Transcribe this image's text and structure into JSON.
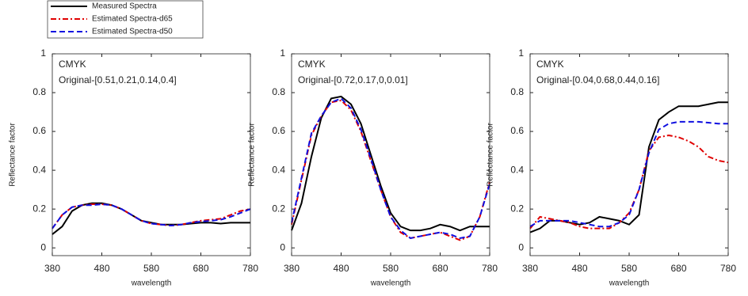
{
  "chart_data": [
    {
      "type": "line",
      "xlim": [
        380,
        780
      ],
      "xticks": [
        380,
        480,
        580,
        680,
        780
      ],
      "ylim": [
        -0.04,
        1
      ],
      "yticks": [
        0,
        0.2,
        0.4,
        0.6,
        0.8,
        1
      ],
      "xlabel": "wavelength",
      "ylabel": "Reflectance factor",
      "annotations": [
        "CMYK",
        "Original-[0.51,0.21,0.14,0.4]"
      ],
      "x": [
        380,
        400,
        420,
        440,
        460,
        480,
        500,
        520,
        540,
        560,
        580,
        600,
        620,
        640,
        660,
        680,
        700,
        720,
        740,
        760,
        780
      ],
      "series": [
        {
          "name": "Measured Spectra",
          "color": "#000000",
          "linestyle": "solid",
          "values": [
            0.07,
            0.11,
            0.19,
            0.22,
            0.23,
            0.23,
            0.22,
            0.2,
            0.17,
            0.14,
            0.13,
            0.12,
            0.12,
            0.12,
            0.125,
            0.13,
            0.13,
            0.125,
            0.13,
            0.13,
            0.13
          ]
        },
        {
          "name": "Estimated Spectra-d65",
          "color": "#e00000",
          "linestyle": "dashdot",
          "values": [
            0.1,
            0.17,
            0.21,
            0.22,
            0.225,
            0.225,
            0.22,
            0.2,
            0.17,
            0.14,
            0.125,
            0.12,
            0.115,
            0.12,
            0.13,
            0.14,
            0.145,
            0.15,
            0.17,
            0.19,
            0.2
          ]
        },
        {
          "name": "Estimated Spectra-d50",
          "color": "#1010e0",
          "linestyle": "dashed",
          "values": [
            0.1,
            0.17,
            0.21,
            0.22,
            0.22,
            0.225,
            0.22,
            0.2,
            0.17,
            0.14,
            0.125,
            0.12,
            0.115,
            0.12,
            0.13,
            0.135,
            0.14,
            0.145,
            0.16,
            0.18,
            0.2
          ]
        }
      ]
    },
    {
      "type": "line",
      "xlim": [
        380,
        780
      ],
      "xticks": [
        380,
        480,
        580,
        680,
        780
      ],
      "ylim": [
        -0.04,
        1
      ],
      "yticks": [
        0,
        0.2,
        0.4,
        0.6,
        0.8,
        1
      ],
      "xlabel": "wavelength",
      "ylabel": "Reflectance factor",
      "annotations": [
        "CMYK",
        "Original-[0.72,0.17,0,0.01]"
      ],
      "x": [
        380,
        400,
        420,
        440,
        460,
        480,
        500,
        520,
        540,
        560,
        580,
        600,
        620,
        640,
        660,
        680,
        700,
        720,
        740,
        760,
        780
      ],
      "series": [
        {
          "color": "#000000",
          "linestyle": "solid",
          "values": [
            0.09,
            0.23,
            0.47,
            0.67,
            0.77,
            0.78,
            0.74,
            0.64,
            0.48,
            0.32,
            0.18,
            0.11,
            0.09,
            0.09,
            0.1,
            0.12,
            0.11,
            0.09,
            0.11,
            0.11,
            0.11
          ]
        },
        {
          "color": "#e00000",
          "linestyle": "dashdot",
          "values": [
            0.12,
            0.35,
            0.58,
            0.68,
            0.75,
            0.76,
            0.71,
            0.6,
            0.45,
            0.3,
            0.16,
            0.08,
            0.05,
            0.06,
            0.07,
            0.08,
            0.06,
            0.04,
            0.06,
            0.16,
            0.34
          ]
        },
        {
          "color": "#1010e0",
          "linestyle": "dashed",
          "values": [
            0.13,
            0.36,
            0.59,
            0.68,
            0.75,
            0.77,
            0.72,
            0.61,
            0.46,
            0.3,
            0.16,
            0.09,
            0.05,
            0.06,
            0.07,
            0.08,
            0.07,
            0.05,
            0.06,
            0.16,
            0.33
          ]
        }
      ]
    },
    {
      "type": "line",
      "xlim": [
        380,
        780
      ],
      "xticks": [
        380,
        480,
        580,
        680,
        780
      ],
      "ylim": [
        -0.04,
        1
      ],
      "yticks": [
        0,
        0.2,
        0.4,
        0.6,
        0.8,
        1
      ],
      "xlabel": "wavelength",
      "ylabel": "Reflectance factor",
      "annotations": [
        "CMYK",
        "Original-[0.04,0.68,0.44,0.16]"
      ],
      "x": [
        380,
        400,
        420,
        440,
        460,
        480,
        500,
        520,
        540,
        560,
        580,
        600,
        620,
        640,
        660,
        680,
        700,
        720,
        740,
        760,
        780
      ],
      "series": [
        {
          "color": "#000000",
          "linestyle": "solid",
          "values": [
            0.08,
            0.1,
            0.14,
            0.14,
            0.13,
            0.12,
            0.13,
            0.16,
            0.15,
            0.14,
            0.12,
            0.17,
            0.52,
            0.66,
            0.7,
            0.73,
            0.73,
            0.73,
            0.74,
            0.75,
            0.75
          ]
        },
        {
          "color": "#e00000",
          "linestyle": "dashdot",
          "values": [
            0.1,
            0.16,
            0.15,
            0.14,
            0.13,
            0.11,
            0.1,
            0.1,
            0.1,
            0.13,
            0.18,
            0.3,
            0.5,
            0.57,
            0.58,
            0.57,
            0.55,
            0.52,
            0.47,
            0.45,
            0.44
          ]
        },
        {
          "color": "#1010e0",
          "linestyle": "dashed",
          "values": [
            0.11,
            0.14,
            0.14,
            0.14,
            0.14,
            0.13,
            0.12,
            0.11,
            0.11,
            0.13,
            0.17,
            0.3,
            0.49,
            0.61,
            0.64,
            0.65,
            0.65,
            0.65,
            0.645,
            0.64,
            0.64
          ]
        }
      ]
    }
  ]
}
